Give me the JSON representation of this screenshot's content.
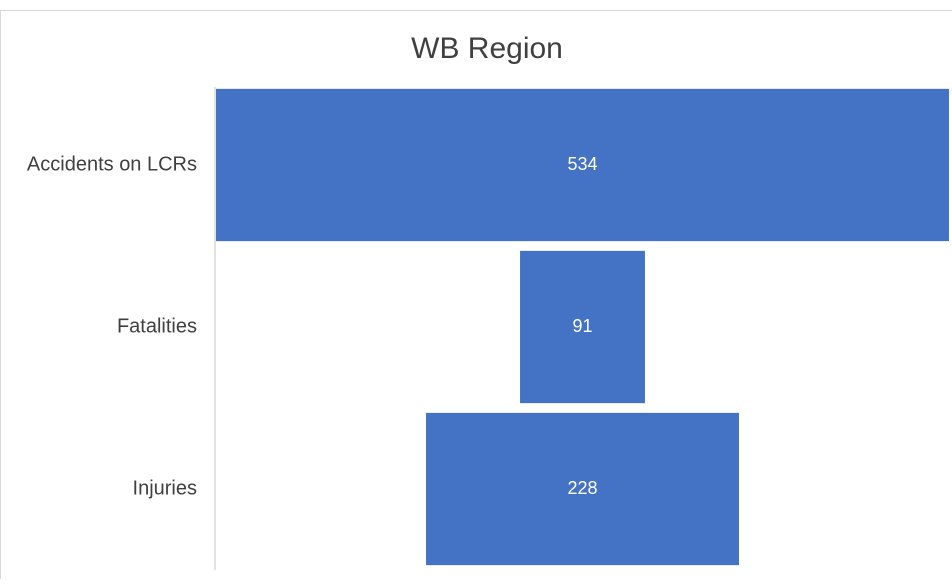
{
  "chart_data": {
    "type": "funnel",
    "title": "WB Region",
    "categories": [
      "Accidents on LCRs",
      "Fatalities",
      "Injuries"
    ],
    "values": [
      534,
      91,
      228
    ],
    "color": "#4472c4"
  }
}
